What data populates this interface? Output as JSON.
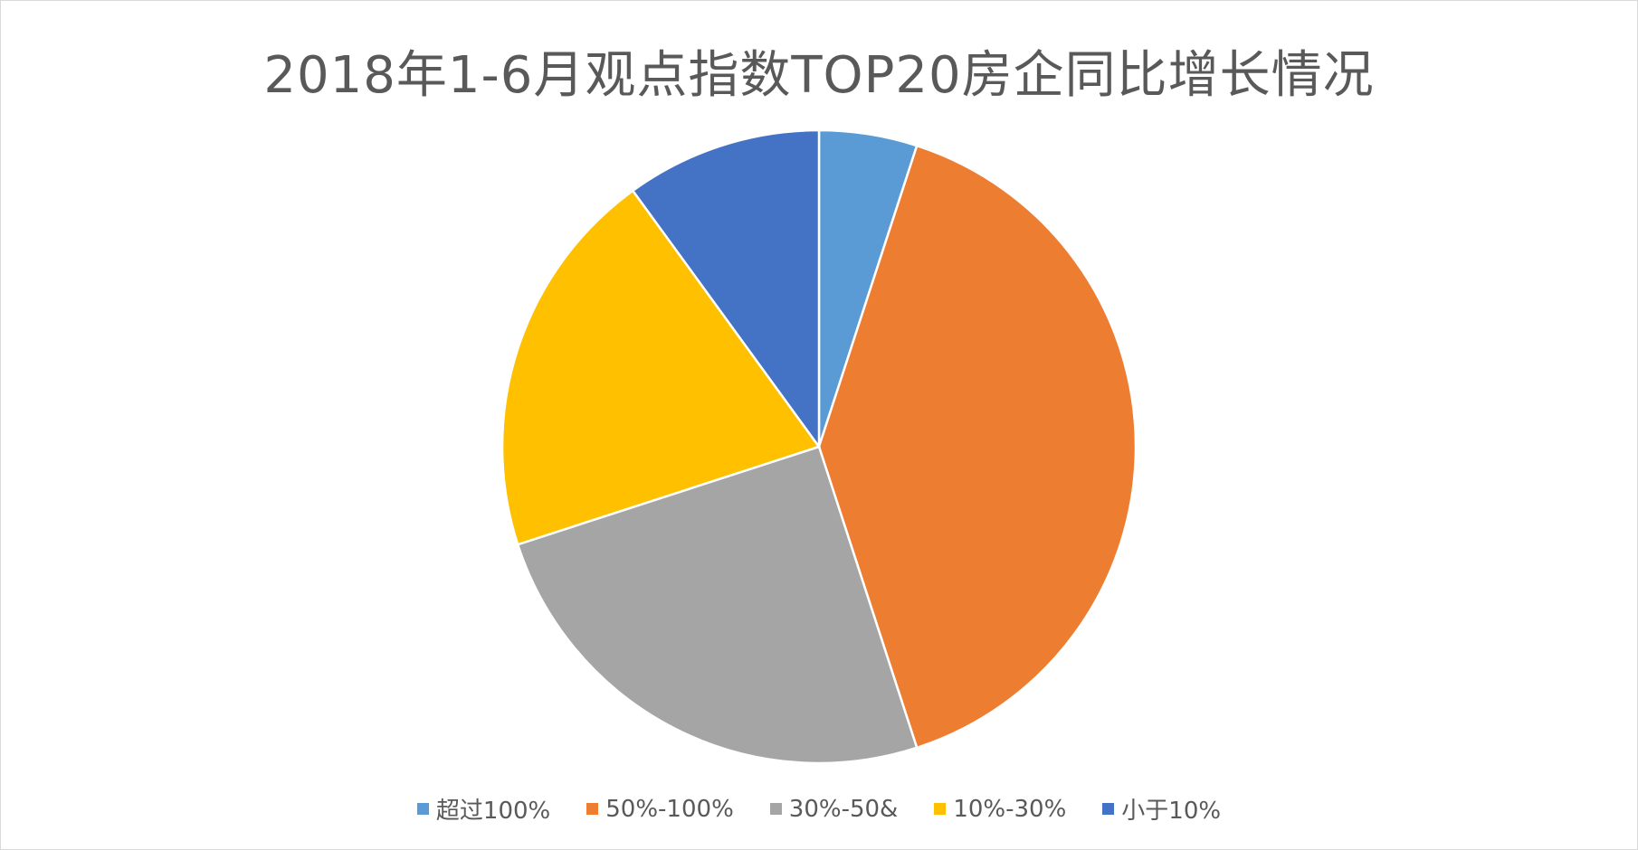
{
  "chart_data": {
    "type": "pie",
    "title": "2018年1-6月观点指数TOP20房企同比增长情况",
    "legend_position": "bottom",
    "categories": [
      "超过100%",
      "50%-100%",
      "30%-50&",
      "10%-30%",
      "小于10%"
    ],
    "values": [
      1,
      8,
      5,
      4,
      2
    ],
    "colors": [
      "#5B9BD5",
      "#ED7D31",
      "#A5A5A5",
      "#FFC000",
      "#4472C4"
    ]
  }
}
